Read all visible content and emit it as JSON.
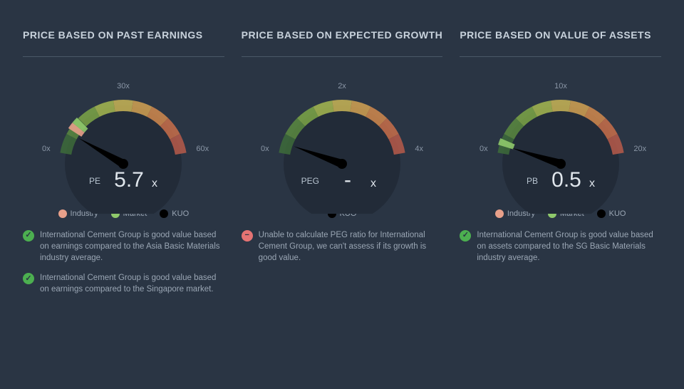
{
  "background_color": "#2a3544",
  "panels": [
    {
      "title": "PRICE BASED ON PAST EARNINGS",
      "gauge": {
        "tick_start": "0x",
        "tick_mid": "30x",
        "tick_end": "60x",
        "metric_label": "PE",
        "metric_value": "5.7",
        "metric_suffix": "x",
        "needle_angle": -60,
        "arc_colors": [
          "#3d6b3a",
          "#5a8a3f",
          "#7ca647",
          "#a6b850",
          "#c9b556",
          "#d4a252",
          "#d28a4e",
          "#c96f4a",
          "#b75a4a"
        ],
        "industry_angle": -54,
        "market_angle": -48,
        "industry_color": "#e8a08a",
        "market_color": "#8fc96b"
      },
      "legend": [
        {
          "label": "Industry",
          "color": "#e8a08a"
        },
        {
          "label": "Market",
          "color": "#8fc96b"
        },
        {
          "label": "KUO",
          "color": "#000000"
        }
      ],
      "notes": [
        {
          "type": "check",
          "text": "International Cement Group is good value based on earnings compared to the Asia Basic Materials industry average."
        },
        {
          "type": "check",
          "text": "International Cement Group is good value based on earnings compared to the Singapore market."
        }
      ]
    },
    {
      "title": "PRICE BASED ON EXPECTED GROWTH",
      "gauge": {
        "tick_start": "0x",
        "tick_mid": "2x",
        "tick_end": "4x",
        "metric_label": "PEG",
        "metric_value": "-",
        "metric_suffix": "x",
        "needle_angle": -70,
        "arc_colors": [
          "#3d6b3a",
          "#5a8a3f",
          "#7ca647",
          "#a6b850",
          "#c9b556",
          "#d4a252",
          "#d28a4e",
          "#c96f4a",
          "#b75a4a"
        ],
        "industry_angle": null,
        "market_angle": null,
        "industry_color": "#e8a08a",
        "market_color": "#8fc96b"
      },
      "legend": [
        {
          "label": "KUO",
          "color": "#000000"
        }
      ],
      "notes": [
        {
          "type": "minus",
          "text": "Unable to calculate PEG ratio for International Cement Group, we can't assess if its growth is good value."
        }
      ]
    },
    {
      "title": "PRICE BASED ON VALUE OF ASSETS",
      "gauge": {
        "tick_start": "0x",
        "tick_mid": "10x",
        "tick_end": "20x",
        "metric_label": "PB",
        "metric_value": "0.5",
        "metric_suffix": "x",
        "needle_angle": -72,
        "arc_colors": [
          "#3d6b3a",
          "#5a8a3f",
          "#7ca647",
          "#a6b850",
          "#c9b556",
          "#d4a252",
          "#d28a4e",
          "#c96f4a",
          "#b75a4a"
        ],
        "industry_angle": null,
        "market_angle": -70,
        "industry_color": "#e8a08a",
        "market_color": "#8fc96b"
      },
      "legend": [
        {
          "label": "Industry",
          "color": "#e8a08a"
        },
        {
          "label": "Market",
          "color": "#8fc96b"
        },
        {
          "label": "KUO",
          "color": "#000000"
        }
      ],
      "notes": [
        {
          "type": "check",
          "text": "International Cement Group is good value based on assets compared to the SG Basic Materials industry average."
        }
      ]
    }
  ]
}
